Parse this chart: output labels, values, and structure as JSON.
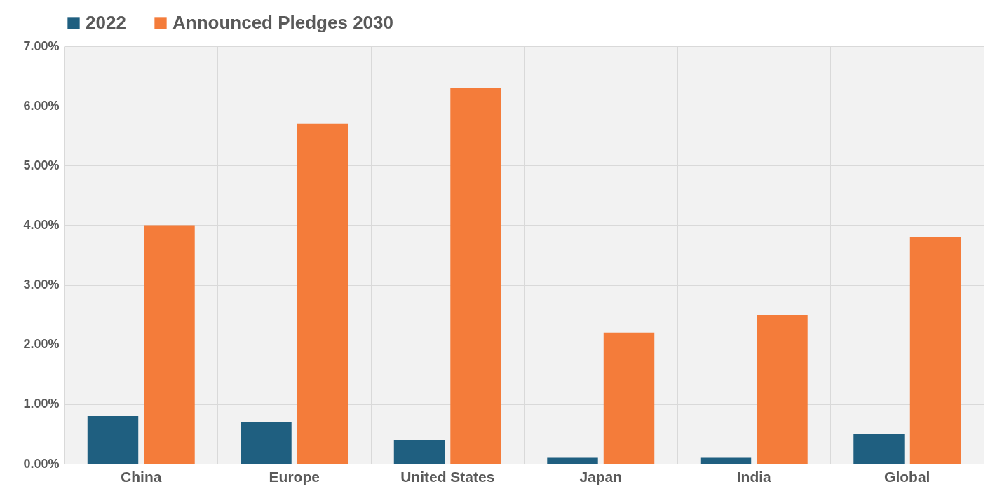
{
  "chart_data": {
    "type": "bar",
    "categories": [
      "China",
      "Europe",
      "United States",
      "Japan",
      "India",
      "Global"
    ],
    "series": [
      {
        "name": "2022",
        "color": "#1f5f80",
        "values": [
          0.8,
          0.7,
          0.4,
          0.1,
          0.1,
          0.5
        ]
      },
      {
        "name": "Announced Pledges 2030",
        "color": "#f47c3a",
        "values": [
          4.0,
          5.7,
          6.3,
          2.2,
          2.5,
          3.8
        ]
      }
    ],
    "ylim": [
      0,
      7
    ],
    "yticks": [
      {
        "value": 0,
        "label": "0.00%"
      },
      {
        "value": 1,
        "label": "1.00%"
      },
      {
        "value": 2,
        "label": "2.00%"
      },
      {
        "value": 3,
        "label": "3.00%"
      },
      {
        "value": 4,
        "label": "4.00%"
      },
      {
        "value": 5,
        "label": "5.00%"
      },
      {
        "value": 6,
        "label": "6.00%"
      },
      {
        "value": 7,
        "label": "7.00%"
      }
    ],
    "grid": true,
    "legend": "top"
  }
}
